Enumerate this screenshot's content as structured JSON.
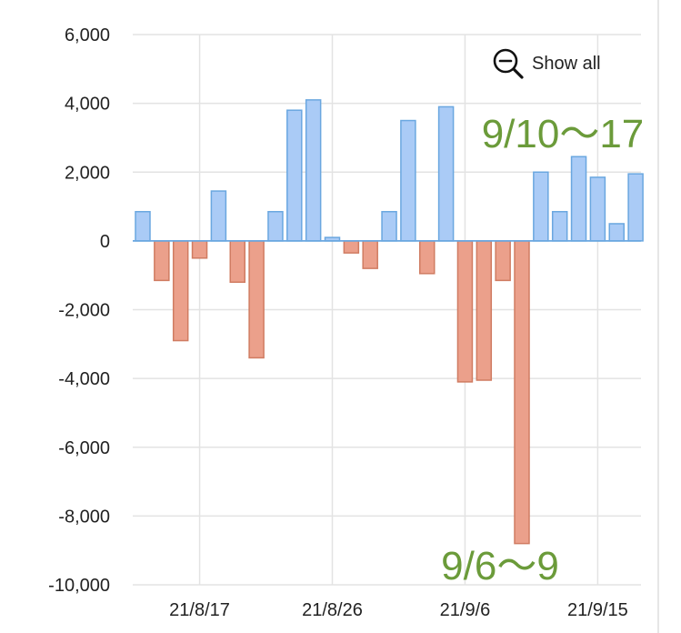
{
  "toolbar": {
    "show_all_label": "Show all"
  },
  "colors": {
    "positive_fill": "#aacbf6",
    "positive_stroke": "#6aa7e0",
    "negative_fill": "#eba08b",
    "negative_stroke": "#d07c62",
    "annotation": "#6b9b3a",
    "grid": "#e3e3e3",
    "baseline": "#6aa7e0"
  },
  "icons": {
    "show_all": "zoom-out-icon"
  },
  "chart_data": {
    "type": "bar",
    "title": "",
    "xlabel": "",
    "ylabel": "",
    "ylim": [
      -10000,
      6000
    ],
    "grid": true,
    "yticks": [
      "6,000",
      "4,000",
      "2,000",
      "0",
      "-2,000",
      "-4,000",
      "-6,000",
      "-8,000",
      "-10,000"
    ],
    "ytick_values": [
      6000,
      4000,
      2000,
      0,
      -2000,
      -4000,
      -6000,
      -8000,
      -10000
    ],
    "xtick_labels": [
      {
        "label": "21/8/17",
        "at_index": 3
      },
      {
        "label": "21/8/26",
        "at_index": 10
      },
      {
        "label": "21/9/6",
        "at_index": 17
      },
      {
        "label": "21/9/15",
        "at_index": 24
      }
    ],
    "values": [
      850,
      -1150,
      -2900,
      -500,
      1450,
      -1200,
      -3400,
      850,
      3800,
      4100,
      100,
      -350,
      -800,
      850,
      3500,
      -950,
      3900,
      -4100,
      -4050,
      -1150,
      -8800,
      2000,
      850,
      2450,
      1850,
      500,
      1950
    ],
    "annotations": [
      {
        "text": "9/10〜17"
      },
      {
        "text": "9/6〜9"
      }
    ]
  }
}
